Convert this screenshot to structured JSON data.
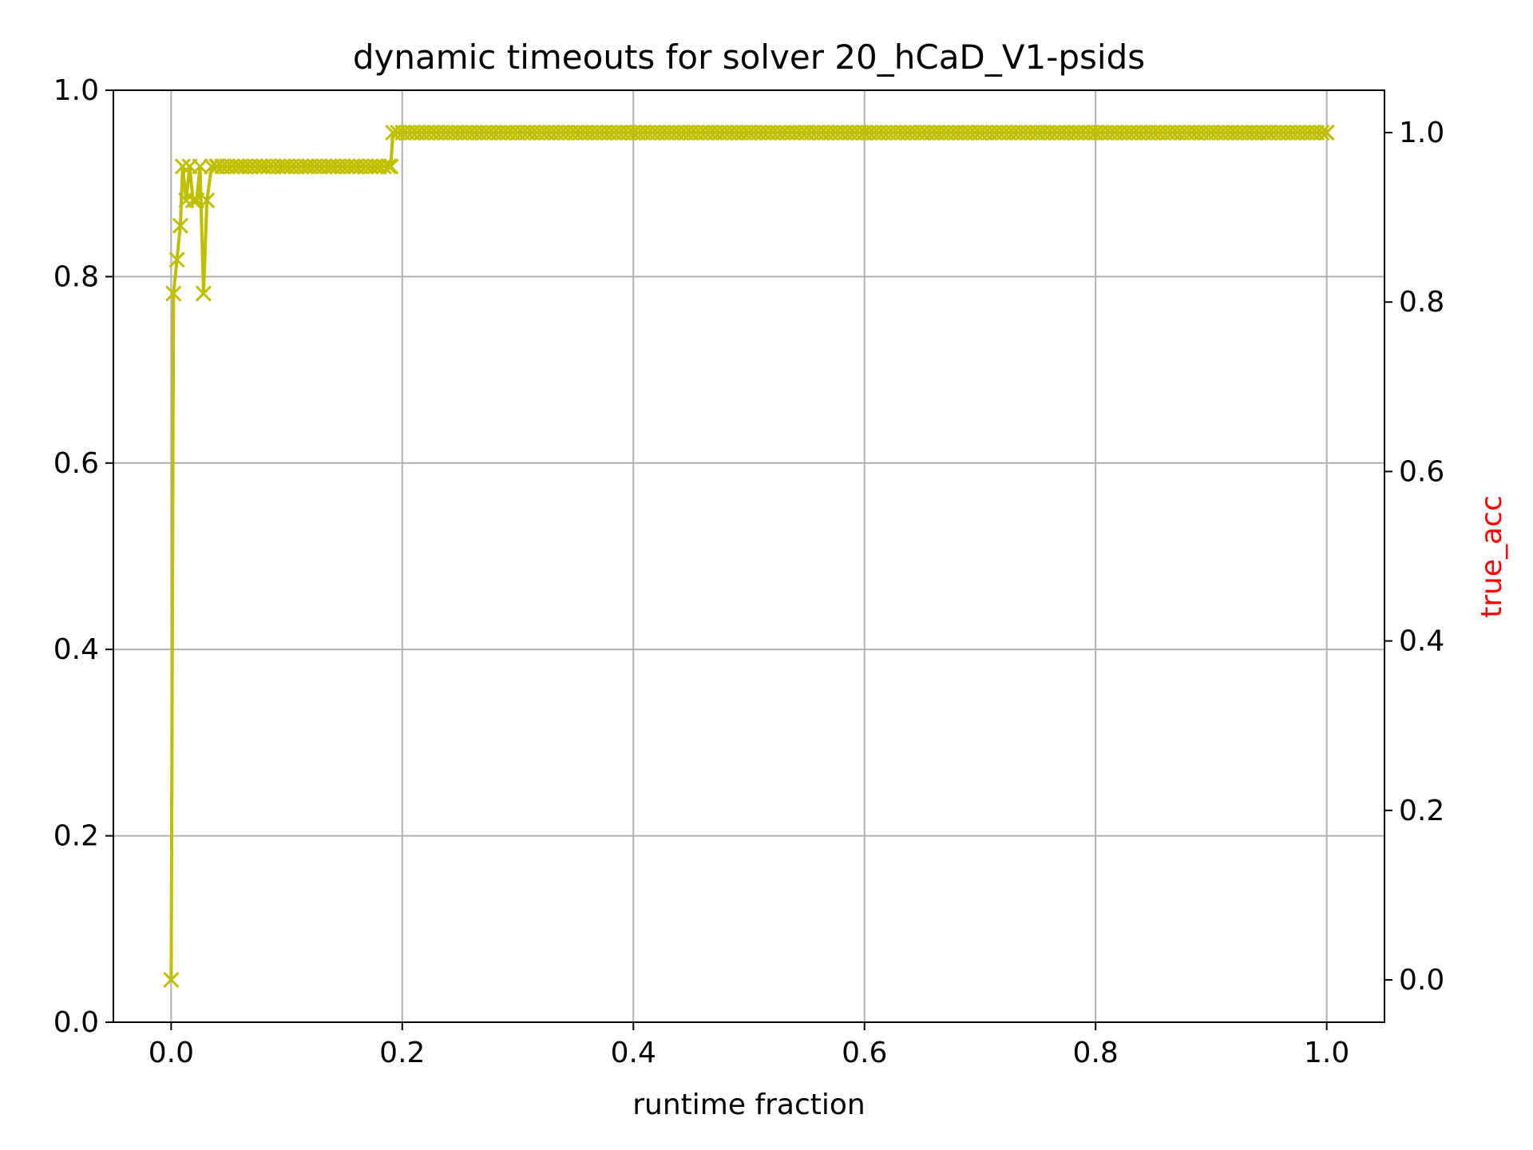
{
  "chart_data": {
    "type": "line",
    "title": "dynamic timeouts for solver 20_hCaD_V1-psids",
    "xlabel": "runtime fraction",
    "ylabel_left": "",
    "ylabel_right": "true_acc",
    "xlim": [
      -0.05,
      1.05
    ],
    "ylim_left": [
      0.0,
      1.0
    ],
    "ylim_right": [
      -0.05,
      1.05
    ],
    "x_ticks": [
      "0.0",
      "0.2",
      "0.4",
      "0.6",
      "0.8",
      "1.0"
    ],
    "y_left_ticks": [
      "0.0",
      "0.2",
      "0.4",
      "0.6",
      "0.8",
      "1.0"
    ],
    "y_right_ticks": [
      "0.0",
      "0.2",
      "0.4",
      "0.6",
      "0.8",
      "1.0"
    ],
    "grid": true,
    "marker": "x",
    "colors": {
      "series": "#bfbf00",
      "right_label": "#ff0000",
      "grid": "#b0b0b0",
      "axes": "#000000"
    },
    "series": [
      {
        "axis": "right",
        "x": [
          0.0,
          0.002,
          0.005,
          0.008,
          0.01,
          0.013,
          0.016,
          0.019,
          0.022,
          0.025,
          0.028,
          0.031,
          0.035,
          0.04,
          0.06,
          0.08,
          0.1,
          0.12,
          0.14,
          0.16,
          0.18,
          0.19,
          0.192,
          0.25,
          0.3,
          0.35,
          0.4,
          0.45,
          0.5,
          0.55,
          0.6,
          0.65,
          0.7,
          0.75,
          0.8,
          0.85,
          0.9,
          0.95,
          1.0
        ],
        "y": [
          0.0,
          0.81,
          0.85,
          0.89,
          0.96,
          0.92,
          0.96,
          0.92,
          0.92,
          0.96,
          0.81,
          0.92,
          0.96,
          0.96,
          0.96,
          0.96,
          0.96,
          0.96,
          0.96,
          0.96,
          0.96,
          0.96,
          1.0,
          1.0,
          1.0,
          1.0,
          1.0,
          1.0,
          1.0,
          1.0,
          1.0,
          1.0,
          1.0,
          1.0,
          1.0,
          1.0,
          1.0,
          1.0,
          1.0
        ]
      }
    ]
  }
}
